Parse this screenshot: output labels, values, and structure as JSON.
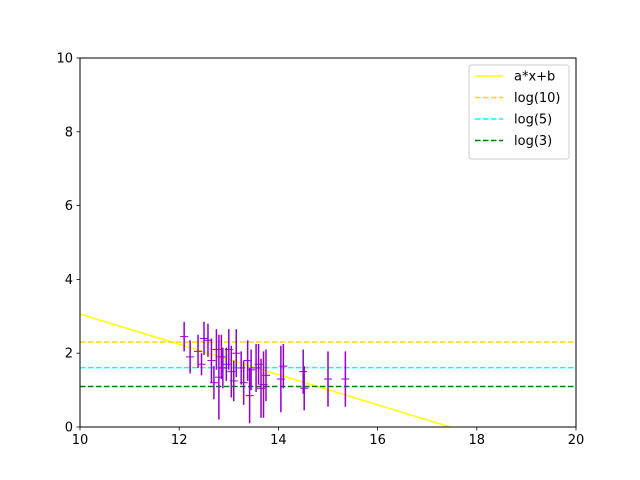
{
  "chart_data": {
    "type": "scatter",
    "title": "",
    "xlabel": "",
    "ylabel": "",
    "xlim": [
      10,
      20
    ],
    "ylim": [
      0,
      10
    ],
    "xticks": [
      10,
      12,
      14,
      16,
      18,
      20
    ],
    "yticks": [
      0,
      2,
      4,
      6,
      8,
      10
    ],
    "grid": false,
    "legend_position": "upper right",
    "lines": [
      {
        "name": "a*x+b",
        "type": "linear",
        "slope": -0.41,
        "intercept": 7.16,
        "color": "#ffff00",
        "style": "solid"
      },
      {
        "name": "log(10)",
        "type": "constant",
        "y": 2.303,
        "color": "#ffd700",
        "style": "dashed"
      },
      {
        "name": "log(5)",
        "type": "constant",
        "y": 1.609,
        "color": "#00ffff",
        "style": "dashed"
      },
      {
        "name": "log(3)",
        "type": "constant",
        "y": 1.099,
        "color": "#008000",
        "style": "dashed"
      }
    ],
    "points": {
      "color": "#9400d3",
      "marker": "+",
      "data": [
        {
          "x": 12.1,
          "y": 2.45,
          "yerr": 0.4
        },
        {
          "x": 12.22,
          "y": 1.9,
          "yerr": 0.45
        },
        {
          "x": 12.38,
          "y": 2.05,
          "yerr": 0.45
        },
        {
          "x": 12.45,
          "y": 1.7,
          "yerr": 0.3
        },
        {
          "x": 12.5,
          "y": 2.4,
          "yerr": 0.45
        },
        {
          "x": 12.58,
          "y": 2.35,
          "yerr": 0.45
        },
        {
          "x": 12.65,
          "y": 1.8,
          "yerr": 0.6
        },
        {
          "x": 12.7,
          "y": 1.2,
          "yerr": 0.45
        },
        {
          "x": 12.75,
          "y": 2.1,
          "yerr": 0.55
        },
        {
          "x": 12.8,
          "y": 1.35,
          "yerr": 1.15
        },
        {
          "x": 12.85,
          "y": 1.9,
          "yerr": 0.6
        },
        {
          "x": 12.88,
          "y": 1.6,
          "yerr": 0.55
        },
        {
          "x": 12.95,
          "y": 1.7,
          "yerr": 0.45
        },
        {
          "x": 13.0,
          "y": 2.1,
          "yerr": 0.55
        },
        {
          "x": 13.05,
          "y": 1.5,
          "yerr": 0.7
        },
        {
          "x": 13.1,
          "y": 1.25,
          "yerr": 0.55
        },
        {
          "x": 13.15,
          "y": 2.0,
          "yerr": 0.65
        },
        {
          "x": 13.25,
          "y": 1.6,
          "yerr": 0.45
        },
        {
          "x": 13.3,
          "y": 1.2,
          "yerr": 0.6
        },
        {
          "x": 13.38,
          "y": 1.8,
          "yerr": 0.55
        },
        {
          "x": 13.42,
          "y": 0.85,
          "yerr": 0.75
        },
        {
          "x": 13.45,
          "y": 1.55,
          "yerr": 0.55
        },
        {
          "x": 13.55,
          "y": 1.6,
          "yerr": 0.65
        },
        {
          "x": 13.6,
          "y": 1.7,
          "yerr": 0.55
        },
        {
          "x": 13.65,
          "y": 1.05,
          "yerr": 0.8
        },
        {
          "x": 13.7,
          "y": 1.15,
          "yerr": 0.9
        },
        {
          "x": 13.75,
          "y": 1.4,
          "yerr": 0.7
        },
        {
          "x": 14.05,
          "y": 1.3,
          "yerr": 0.9
        },
        {
          "x": 14.1,
          "y": 1.65,
          "yerr": 0.6
        },
        {
          "x": 14.5,
          "y": 1.5,
          "yerr": 0.6
        },
        {
          "x": 14.52,
          "y": 1.05,
          "yerr": 0.6
        },
        {
          "x": 15.0,
          "y": 1.3,
          "yerr": 0.75
        },
        {
          "x": 15.35,
          "y": 1.3,
          "yerr": 0.75
        }
      ]
    }
  }
}
